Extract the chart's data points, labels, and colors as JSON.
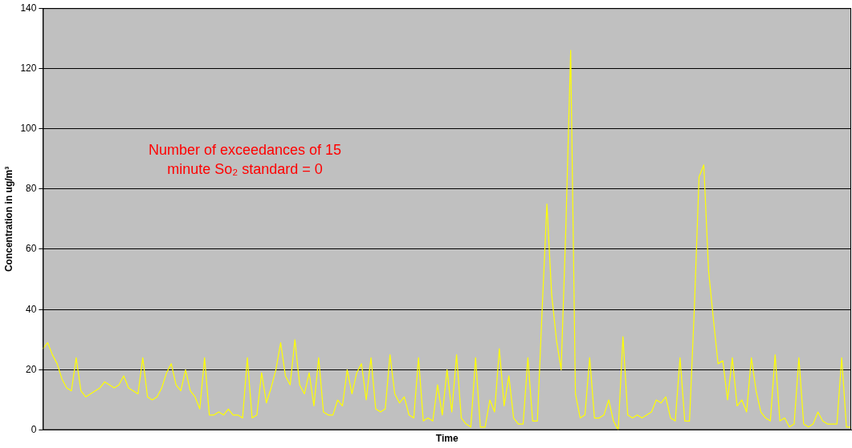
{
  "chart_data": {
    "type": "line",
    "xlabel": "Time",
    "ylabel": "Concentration in ug/m³",
    "annotations": [
      "Number of exceedances of 15 minute So₂ standard = 0"
    ],
    "categories": [
      null,
      null,
      null,
      null,
      null,
      null,
      null,
      null,
      null,
      null,
      null,
      null,
      null,
      null,
      null,
      null,
      null,
      null,
      null,
      null,
      null,
      null,
      null,
      null,
      null,
      null,
      null,
      null,
      null,
      null,
      null,
      null,
      null,
      null,
      null,
      null,
      null,
      null,
      null,
      null,
      null,
      null,
      null,
      null,
      null,
      null,
      null,
      null,
      null,
      null,
      null,
      null,
      null,
      null,
      null,
      null,
      null,
      null,
      null,
      null,
      null,
      null,
      null,
      null,
      null,
      null,
      null,
      null,
      null,
      null,
      null,
      null,
      null,
      null,
      null,
      null,
      null,
      null,
      null,
      null,
      null,
      null,
      null,
      null,
      null,
      null,
      null,
      null,
      null,
      null,
      null,
      null,
      null,
      null,
      null,
      null,
      null,
      null,
      null,
      null,
      null,
      null,
      null,
      null,
      null,
      null,
      null,
      null,
      null,
      null,
      null,
      null,
      null,
      null,
      null,
      null,
      null,
      null,
      null,
      null,
      null,
      null,
      null,
      null,
      null,
      null,
      null,
      null,
      null,
      null,
      null,
      null,
      null,
      null,
      null,
      null,
      null,
      null,
      null,
      null,
      null,
      null,
      null,
      null,
      null,
      null,
      null,
      null,
      null,
      null,
      null,
      null,
      null,
      null,
      null,
      null,
      null,
      null,
      null,
      null,
      null,
      null,
      null,
      null,
      null,
      null,
      null,
      null,
      null,
      null,
      null
    ],
    "series": [
      {
        "color": "#ffff00",
        "values": [
          27,
          29,
          25,
          22,
          17,
          14,
          13,
          24,
          13,
          11,
          12,
          13,
          14,
          16,
          15,
          14,
          15,
          18,
          14,
          13,
          12,
          24,
          11,
          10,
          11,
          14,
          19,
          22,
          15,
          13,
          20,
          13,
          11,
          7,
          24,
          5,
          5,
          6,
          5,
          7,
          5,
          5,
          4,
          24,
          4,
          5,
          19,
          9,
          14,
          20,
          29,
          18,
          15,
          30,
          15,
          12,
          19,
          8,
          24,
          6,
          5,
          5,
          10,
          8,
          20,
          12,
          19,
          22,
          10,
          24,
          7,
          6,
          7,
          25,
          12,
          9,
          11,
          5,
          4,
          24,
          3,
          4,
          3,
          15,
          5,
          20,
          6,
          25,
          4,
          2,
          1,
          24,
          1,
          1,
          10,
          6,
          27,
          8,
          18,
          4,
          2,
          2,
          24,
          3,
          3,
          40,
          75,
          45,
          30,
          20,
          68,
          126,
          12,
          4,
          5,
          24,
          4,
          4,
          5,
          10,
          3,
          0,
          31,
          5,
          4,
          5,
          4,
          5,
          6,
          10,
          9,
          11,
          4,
          3,
          24,
          3,
          3,
          40,
          84,
          88,
          53,
          37,
          22,
          23,
          10,
          24,
          8,
          10,
          6,
          24,
          13,
          6,
          4,
          3,
          25,
          3,
          4,
          1,
          2,
          24,
          2,
          1,
          2,
          6,
          3,
          2,
          2,
          2,
          24,
          1,
          1
        ]
      }
    ],
    "ylim": [
      0,
      140
    ],
    "yticks": [
      0,
      20,
      40,
      60,
      80,
      100,
      120,
      140
    ],
    "grid": "y",
    "legend": false
  }
}
